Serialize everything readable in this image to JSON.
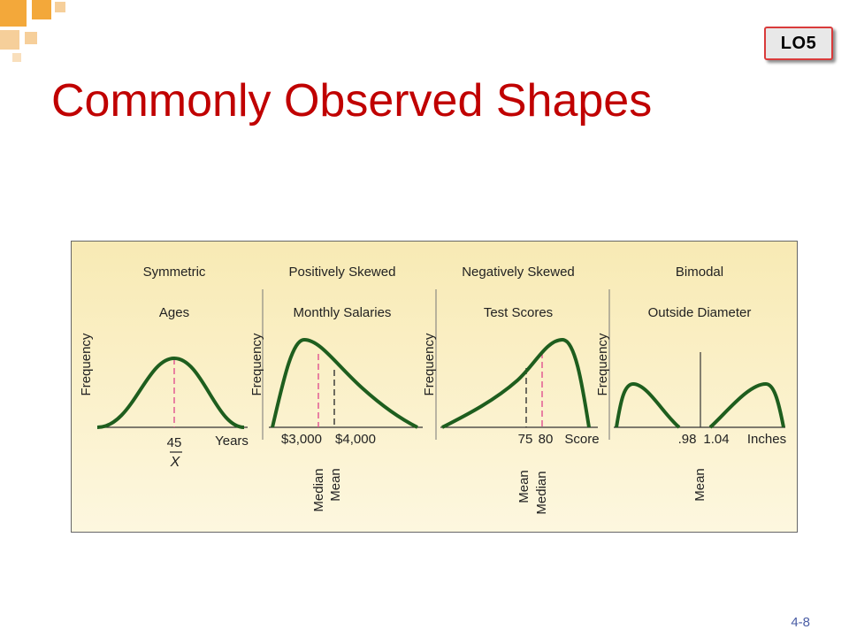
{
  "badge": "LO5",
  "title": "Commonly Observed Shapes",
  "page_number": "4-8",
  "colors": {
    "title": "#c00000",
    "curve": "#1e5e1e",
    "median_line": "#e05090",
    "mean_line": "#333333",
    "panel_fill": "#fbf3cf",
    "corner_orange": "#f3a83a",
    "corner_tan": "#f6cf9a"
  },
  "panels": [
    {
      "shape": "Symmetric",
      "subject": "Ages",
      "ylabel": "Frequency",
      "ticks": [
        "45"
      ],
      "xbar": "X",
      "unit": "Years",
      "markers": []
    },
    {
      "shape": "Positively Skewed",
      "subject": "Monthly Salaries",
      "ylabel": "Frequency",
      "ticks": [
        "$3,000",
        "$4,000"
      ],
      "unit": "",
      "markers": [
        "Median",
        "Mean"
      ]
    },
    {
      "shape": "Negatively Skewed",
      "subject": "Test Scores",
      "ylabel": "Frequency",
      "ticks": [
        "75",
        "80"
      ],
      "unit": "Score",
      "markers": [
        "Mean",
        "Median"
      ]
    },
    {
      "shape": "Bimodal",
      "subject": "Outside Diameter",
      "ylabel": "Frequency",
      "ticks": [
        ".98",
        "1.04"
      ],
      "unit": "Inches",
      "markers": [
        "Mean"
      ]
    }
  ]
}
